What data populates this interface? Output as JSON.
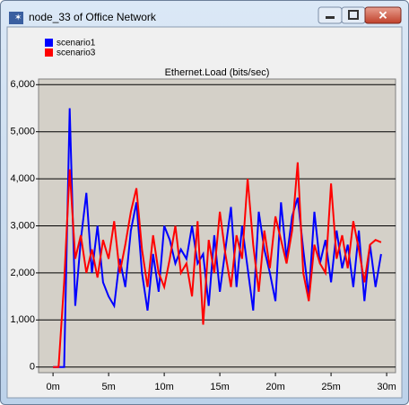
{
  "window": {
    "title": "node_33 of Office Network"
  },
  "chart_data": {
    "type": "line",
    "title": "Ethernet.Load (bits/sec)",
    "x": [
      0,
      0.5,
      1,
      1.5,
      2,
      2.5,
      3,
      3.5,
      4,
      4.5,
      5,
      5.5,
      6,
      6.5,
      7,
      7.5,
      8,
      8.5,
      9,
      9.5,
      10,
      10.5,
      11,
      11.5,
      12,
      12.5,
      13,
      13.5,
      14,
      14.5,
      15,
      15.5,
      16,
      16.5,
      17,
      17.5,
      18,
      18.5,
      19,
      19.5,
      20,
      20.5,
      21,
      21.5,
      22,
      22.5,
      23,
      23.5,
      24,
      24.5,
      25,
      25.5,
      26,
      26.5,
      27,
      27.5,
      28,
      28.5,
      29,
      29.5
    ],
    "series": [
      {
        "name": "scenario1",
        "color": "#0000ff",
        "values": [
          0,
          0,
          0,
          5500,
          1300,
          2700,
          3700,
          2000,
          3000,
          1800,
          1500,
          1300,
          2300,
          1700,
          2900,
          3500,
          2000,
          1200,
          2400,
          1600,
          3000,
          2700,
          2200,
          2500,
          2300,
          3000,
          2200,
          2400,
          1300,
          2800,
          1600,
          2500,
          3400,
          1700,
          3000,
          2100,
          1200,
          3300,
          2500,
          2000,
          1400,
          3500,
          2300,
          3200,
          3600,
          2500,
          1500,
          3300,
          2200,
          2700,
          1800,
          2900,
          2100,
          2600,
          1700,
          2900,
          1400,
          2600,
          1700,
          2400
        ]
      },
      {
        "name": "scenario3",
        "color": "#ff0000",
        "values": [
          0,
          0,
          1800,
          4200,
          2300,
          2800,
          2000,
          2500,
          1900,
          2700,
          2300,
          3100,
          2000,
          2600,
          3300,
          3800,
          2500,
          1700,
          2800,
          2000,
          1700,
          2300,
          3000,
          2000,
          2200,
          1500,
          3100,
          900,
          2700,
          2000,
          3300,
          2400,
          1700,
          2800,
          2300,
          4000,
          2600,
          1600,
          2900,
          2100,
          3200,
          2700,
          2200,
          2900,
          4350,
          2000,
          1400,
          2600,
          2200,
          2000,
          3900,
          2300,
          2800,
          2100,
          3100,
          2500,
          1800,
          2600,
          2700,
          2650
        ]
      }
    ],
    "xlim": [
      -1.3,
      30.8
    ],
    "xticks": [
      {
        "value": 0,
        "label": "0m"
      },
      {
        "value": 5,
        "label": "5m"
      },
      {
        "value": 10,
        "label": "10m"
      },
      {
        "value": 15,
        "label": "15m"
      },
      {
        "value": 20,
        "label": "20m"
      },
      {
        "value": 25,
        "label": "25m"
      },
      {
        "value": 30,
        "label": "30m"
      }
    ],
    "ylim": [
      -120,
      6120
    ],
    "yticks": [
      0,
      {
        "value": 1000,
        "label": "1,000"
      },
      {
        "value": 2000,
        "label": "2,000"
      },
      {
        "value": 3000,
        "label": "3,000"
      },
      {
        "value": 4000,
        "label": "4,000"
      },
      {
        "value": 5000,
        "label": "5,000"
      },
      {
        "value": 6000,
        "label": "6,000"
      }
    ],
    "grid": true
  }
}
